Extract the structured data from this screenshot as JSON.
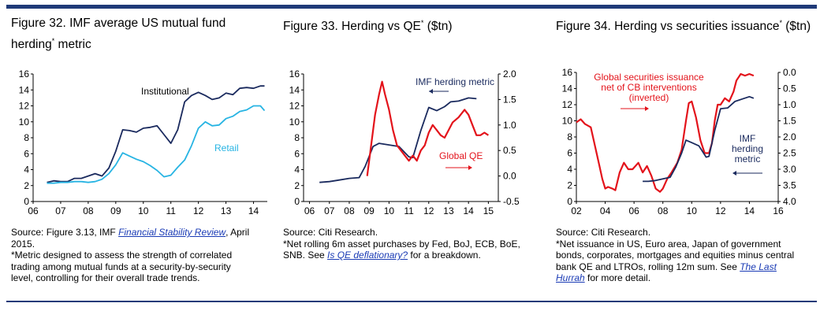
{
  "colors": {
    "navy": "#1a2a5e",
    "red": "#e3131b",
    "cyan": "#27b4e3",
    "rule": "#1f3a78",
    "link": "#1a3bb5"
  },
  "panels": [
    {
      "title_line1": "Figure 32. IMF average US mutual fund",
      "title_line2": "herding",
      "title_sup": "*",
      "title_tail": " metric",
      "source_prefix": "Source: Figure 3.13, IMF ",
      "source_link": "Financial Stability Review",
      "source_suffix": ", April",
      "source_line2": "2015.",
      "notes": [
        "*Metric designed to assess the strength of correlated",
        "trading among mutual funds at a security-by-security",
        "level, controlling for their overall trade trends."
      ]
    },
    {
      "title_main": "Figure 33. Herding vs QE",
      "title_sup": "*",
      "title_tail": " ($tn)",
      "source": "Source: Citi Research.",
      "note_line1": "*Net rolling 6m asset purchases by Fed, BoJ, ECB, BoE,",
      "note_prefix": "SNB. See ",
      "note_link": "Is QE deflationary?",
      "note_suffix": " for a breakdown."
    },
    {
      "title_main": "Figure 34. Herding vs securities issuance",
      "title_sup": "*",
      "title_tail": " ($tn)",
      "source": "Source: Citi Research.",
      "notes": [
        "*Net issuance in US, Euro area, Japan of government",
        "bonds, corporates, mortgages and equities minus central",
        "bank QE and LTROs, rolling 12m sum. See "
      ],
      "note_link1": "The Last",
      "note_link2": "Hurrah",
      "note_suffix": " for more detail."
    }
  ],
  "chart_data": [
    {
      "type": "line",
      "title": "Figure 32. IMF average US mutual fund herding* metric",
      "xlim": [
        6,
        14.5
      ],
      "xticks": [
        "06",
        "07",
        "08",
        "09",
        "10",
        "11",
        "12",
        "13",
        "14"
      ],
      "ylim": [
        0,
        16
      ],
      "yticks": [
        "0",
        "2",
        "4",
        "6",
        "8",
        "10",
        "12",
        "14",
        "16"
      ],
      "series": [
        {
          "name": "Institutional",
          "color": "#1a2a5e",
          "points": [
            [
              6.5,
              2.4
            ],
            [
              6.75,
              2.6
            ],
            [
              7.0,
              2.5
            ],
            [
              7.25,
              2.5
            ],
            [
              7.5,
              2.9
            ],
            [
              7.75,
              2.9
            ],
            [
              8.0,
              3.2
            ],
            [
              8.25,
              3.5
            ],
            [
              8.5,
              3.2
            ],
            [
              8.75,
              4.2
            ],
            [
              9.0,
              6.3
            ],
            [
              9.25,
              9.0
            ],
            [
              9.5,
              8.9
            ],
            [
              9.75,
              8.7
            ],
            [
              10.0,
              9.2
            ],
            [
              10.25,
              9.3
            ],
            [
              10.5,
              9.5
            ],
            [
              10.75,
              8.4
            ],
            [
              11.0,
              7.3
            ],
            [
              11.25,
              9.0
            ],
            [
              11.5,
              12.5
            ],
            [
              11.75,
              13.3
            ],
            [
              12.0,
              13.7
            ],
            [
              12.25,
              13.3
            ],
            [
              12.5,
              12.8
            ],
            [
              12.75,
              13.0
            ],
            [
              13.0,
              13.6
            ],
            [
              13.25,
              13.4
            ],
            [
              13.5,
              14.2
            ],
            [
              13.75,
              14.3
            ],
            [
              14.0,
              14.2
            ],
            [
              14.25,
              14.5
            ],
            [
              14.4,
              14.5
            ]
          ]
        },
        {
          "name": "Retail",
          "color": "#27b4e3",
          "points": [
            [
              6.5,
              2.3
            ],
            [
              6.75,
              2.3
            ],
            [
              7.0,
              2.4
            ],
            [
              7.25,
              2.4
            ],
            [
              7.5,
              2.5
            ],
            [
              7.75,
              2.5
            ],
            [
              8.0,
              2.4
            ],
            [
              8.25,
              2.5
            ],
            [
              8.5,
              2.8
            ],
            [
              8.75,
              3.5
            ],
            [
              9.0,
              4.6
            ],
            [
              9.25,
              6.1
            ],
            [
              9.5,
              5.7
            ],
            [
              9.75,
              5.3
            ],
            [
              10.0,
              5.0
            ],
            [
              10.25,
              4.5
            ],
            [
              10.5,
              3.9
            ],
            [
              10.75,
              3.1
            ],
            [
              11.0,
              3.3
            ],
            [
              11.25,
              4.3
            ],
            [
              11.5,
              5.2
            ],
            [
              11.75,
              7.0
            ],
            [
              12.0,
              9.2
            ],
            [
              12.25,
              10.0
            ],
            [
              12.5,
              9.5
            ],
            [
              12.75,
              9.6
            ],
            [
              13.0,
              10.4
            ],
            [
              13.25,
              10.7
            ],
            [
              13.5,
              11.3
            ],
            [
              13.75,
              11.5
            ],
            [
              14.0,
              12.0
            ],
            [
              14.25,
              12.0
            ],
            [
              14.4,
              11.4
            ]
          ]
        }
      ],
      "annotations": [
        "Institutional",
        "Retail"
      ]
    },
    {
      "type": "line",
      "title": "Figure 33. Herding vs QE* ($tn)",
      "xlim": [
        5.7,
        15.5
      ],
      "xticks": [
        "06",
        "07",
        "08",
        "09",
        "10",
        "11",
        "12",
        "13",
        "14",
        "15"
      ],
      "ylim": [
        0,
        16
      ],
      "yticks": [
        "0",
        "2",
        "4",
        "6",
        "8",
        "10",
        "12",
        "14",
        "16"
      ],
      "y2lim": [
        -0.5,
        2.0
      ],
      "y2ticks": [
        "-0.5",
        "0.0",
        "0.5",
        "1.0",
        "1.5",
        "2.0"
      ],
      "series": [
        {
          "name": "IMF herding metric",
          "axis": "left",
          "color": "#1a2a5e",
          "points": [
            [
              6.5,
              2.4
            ],
            [
              7.0,
              2.5
            ],
            [
              7.5,
              2.7
            ],
            [
              8.0,
              2.9
            ],
            [
              8.5,
              3.0
            ],
            [
              8.8,
              4.4
            ],
            [
              9.2,
              6.9
            ],
            [
              9.5,
              7.3
            ],
            [
              10.0,
              7.1
            ],
            [
              10.5,
              6.9
            ],
            [
              11.0,
              5.6
            ],
            [
              11.2,
              5.5
            ],
            [
              11.6,
              8.9
            ],
            [
              12.0,
              11.8
            ],
            [
              12.4,
              11.4
            ],
            [
              12.8,
              11.9
            ],
            [
              13.1,
              12.5
            ],
            [
              13.5,
              12.6
            ],
            [
              14.0,
              13.0
            ],
            [
              14.4,
              12.9
            ]
          ]
        },
        {
          "name": "Global QE",
          "axis": "right",
          "color": "#e3131b",
          "points": [
            [
              8.9,
              0.0
            ],
            [
              9.1,
              0.6
            ],
            [
              9.3,
              1.2
            ],
            [
              9.5,
              1.6
            ],
            [
              9.65,
              1.85
            ],
            [
              9.8,
              1.6
            ],
            [
              10.0,
              1.3
            ],
            [
              10.2,
              0.9
            ],
            [
              10.4,
              0.6
            ],
            [
              10.6,
              0.5
            ],
            [
              10.8,
              0.4
            ],
            [
              11.0,
              0.3
            ],
            [
              11.2,
              0.4
            ],
            [
              11.4,
              0.3
            ],
            [
              11.6,
              0.5
            ],
            [
              11.8,
              0.6
            ],
            [
              12.0,
              0.85
            ],
            [
              12.2,
              1.0
            ],
            [
              12.4,
              0.9
            ],
            [
              12.6,
              0.8
            ],
            [
              12.8,
              0.75
            ],
            [
              13.0,
              0.9
            ],
            [
              13.2,
              1.05
            ],
            [
              13.5,
              1.15
            ],
            [
              13.8,
              1.3
            ],
            [
              14.0,
              1.2
            ],
            [
              14.2,
              1.0
            ],
            [
              14.4,
              0.8
            ],
            [
              14.6,
              0.8
            ],
            [
              14.8,
              0.85
            ],
            [
              15.0,
              0.8
            ]
          ]
        }
      ],
      "annotations": [
        "IMF herding metric",
        "Global QE"
      ]
    },
    {
      "type": "line",
      "title": "Figure 34. Herding vs securities issuance* ($tn)",
      "xlim": [
        2,
        16
      ],
      "xticks": [
        "02",
        "04",
        "06",
        "08",
        "10",
        "12",
        "14",
        "16"
      ],
      "ylim": [
        0,
        16
      ],
      "yticks": [
        "0",
        "2",
        "4",
        "6",
        "8",
        "10",
        "12",
        "14",
        "16"
      ],
      "y2lim": [
        4.0,
        0.0
      ],
      "y2ticks": [
        "0.0",
        "0.5",
        "1.0",
        "1.5",
        "2.0",
        "2.5",
        "3.0",
        "3.5",
        "4.0"
      ],
      "series": [
        {
          "name": "Global securities issuance net of CB interventions (inverted)",
          "axis": "right",
          "color": "#e3131b",
          "points": [
            [
              2.0,
              1.55
            ],
            [
              2.3,
              1.45
            ],
            [
              2.6,
              1.6
            ],
            [
              3.0,
              1.7
            ],
            [
              3.3,
              2.3
            ],
            [
              3.6,
              2.9
            ],
            [
              3.8,
              3.3
            ],
            [
              4.0,
              3.6
            ],
            [
              4.2,
              3.55
            ],
            [
              4.5,
              3.6
            ],
            [
              4.7,
              3.65
            ],
            [
              5.0,
              3.1
            ],
            [
              5.3,
              2.8
            ],
            [
              5.6,
              3.0
            ],
            [
              5.9,
              3.0
            ],
            [
              6.3,
              2.8
            ],
            [
              6.6,
              3.1
            ],
            [
              6.9,
              2.9
            ],
            [
              7.2,
              3.2
            ],
            [
              7.5,
              3.6
            ],
            [
              7.8,
              3.7
            ],
            [
              8.0,
              3.6
            ],
            [
              8.3,
              3.3
            ],
            [
              8.6,
              3.1
            ],
            [
              9.0,
              2.8
            ],
            [
              9.3,
              2.4
            ],
            [
              9.6,
              1.5
            ],
            [
              9.8,
              0.95
            ],
            [
              10.0,
              0.9
            ],
            [
              10.3,
              1.4
            ],
            [
              10.6,
              2.1
            ],
            [
              10.9,
              2.5
            ],
            [
              11.2,
              2.5
            ],
            [
              11.4,
              2.2
            ],
            [
              11.6,
              1.5
            ],
            [
              11.8,
              1.0
            ],
            [
              12.0,
              1.0
            ],
            [
              12.3,
              0.8
            ],
            [
              12.6,
              0.9
            ],
            [
              12.9,
              0.6
            ],
            [
              13.1,
              0.25
            ],
            [
              13.4,
              0.05
            ],
            [
              13.7,
              0.1
            ],
            [
              14.0,
              0.05
            ],
            [
              14.3,
              0.1
            ]
          ]
        },
        {
          "name": "IMF herding metric",
          "axis": "left",
          "color": "#1a2a5e",
          "points": [
            [
              6.6,
              2.5
            ],
            [
              7.0,
              2.5
            ],
            [
              7.5,
              2.6
            ],
            [
              8.0,
              2.8
            ],
            [
              8.5,
              3.0
            ],
            [
              8.9,
              4.3
            ],
            [
              9.3,
              6.0
            ],
            [
              9.6,
              7.6
            ],
            [
              10.0,
              7.3
            ],
            [
              10.5,
              6.9
            ],
            [
              11.0,
              5.5
            ],
            [
              11.2,
              5.6
            ],
            [
              11.6,
              8.8
            ],
            [
              12.0,
              11.5
            ],
            [
              12.5,
              11.6
            ],
            [
              13.0,
              12.4
            ],
            [
              13.5,
              12.7
            ],
            [
              14.0,
              13.0
            ],
            [
              14.3,
              12.8
            ]
          ]
        }
      ],
      "annotations": [
        "Global securities issuance",
        "net of CB interventions",
        "(inverted)",
        "IMF",
        "herding",
        "metric"
      ]
    }
  ]
}
